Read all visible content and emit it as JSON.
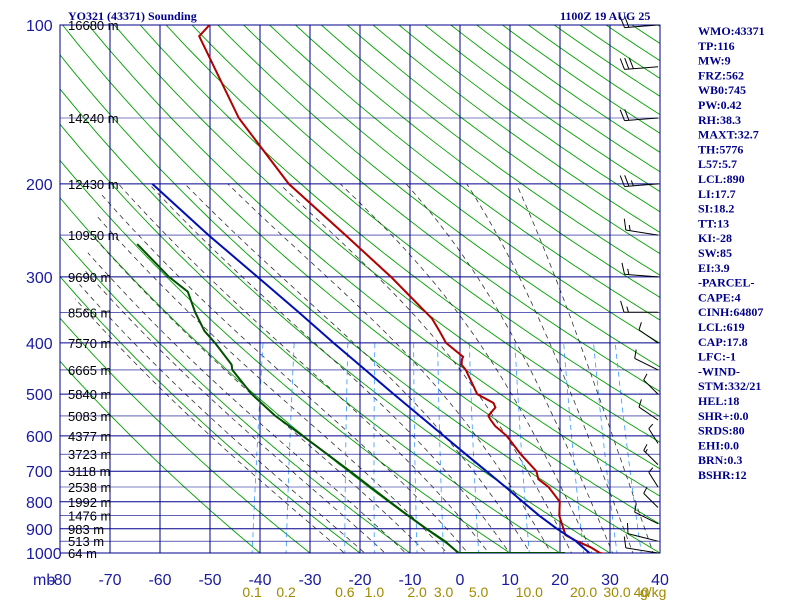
{
  "header": {
    "title": "YO321 (43371) Sounding",
    "datetime": "1100Z 19 AUG 25"
  },
  "chart_data": {
    "type": "line",
    "title": "YO321 (43371) Sounding",
    "pressure_levels": [
      100,
      200,
      300,
      400,
      500,
      600,
      700,
      800,
      900,
      1000
    ],
    "pressure_axis_label": "mb",
    "temperature_ticks": [
      -80,
      -70,
      -60,
      -50,
      -40,
      -30,
      -20,
      -10,
      0,
      10,
      20,
      30,
      40
    ],
    "temperature_range": [
      -80,
      40
    ],
    "mixing_ratio_ticks": [
      "0.1",
      "0.2",
      "0.6",
      "1.0",
      "2.0",
      "3.0",
      "5.0",
      "10.0",
      "20.0",
      "30.0",
      "40"
    ],
    "mixing_ratio_unit": "g/kg",
    "height_labels": [
      {
        "p": 100,
        "text": "16680 m"
      },
      {
        "p": 150,
        "text": "14240 m"
      },
      {
        "p": 200,
        "text": "12430 m"
      },
      {
        "p": 250,
        "text": "10950 m"
      },
      {
        "p": 300,
        "text": "9690 m"
      },
      {
        "p": 350,
        "text": "8566 m"
      },
      {
        "p": 400,
        "text": "7570 m"
      },
      {
        "p": 450,
        "text": "6665 m"
      },
      {
        "p": 500,
        "text": "5840 m"
      },
      {
        "p": 550,
        "text": "5083 m"
      },
      {
        "p": 600,
        "text": "4377 m"
      },
      {
        "p": 650,
        "text": "3723 m"
      },
      {
        "p": 700,
        "text": "3118 m"
      },
      {
        "p": 750,
        "text": "2538 m"
      },
      {
        "p": 800,
        "text": "1992 m"
      },
      {
        "p": 850,
        "text": "1476 m"
      },
      {
        "p": 900,
        "text": "983 m"
      },
      {
        "p": 950,
        "text": "513 m"
      },
      {
        "p": 1000,
        "text": "64 m"
      }
    ],
    "series": [
      {
        "values": [
          [
            1005,
            29.5
          ],
          [
            1000,
            28.0
          ],
          [
            975,
            25.8
          ],
          [
            950,
            22.8
          ],
          [
            925,
            20.2
          ],
          [
            900,
            19.5
          ],
          [
            850,
            18.0
          ],
          [
            800,
            17.4
          ],
          [
            750,
            14.4
          ],
          [
            725,
            12.0
          ],
          [
            700,
            11.2
          ],
          [
            650,
            7.2
          ],
          [
            600,
            3.5
          ],
          [
            575,
            0.7
          ],
          [
            560,
            -0.5
          ],
          [
            550,
            -1.2
          ],
          [
            530,
            -0.2
          ],
          [
            520,
            -0.8
          ],
          [
            500,
            -4.5
          ],
          [
            450,
            -8.0
          ],
          [
            440,
            -9.1
          ],
          [
            430,
            -9.3
          ],
          [
            425,
            -9.2
          ],
          [
            400,
            -13.3
          ],
          [
            380,
            -15.2
          ],
          [
            360,
            -17.3
          ],
          [
            300,
            -27.6
          ],
          [
            250,
            -38.8
          ],
          [
            200,
            -52.7
          ],
          [
            150,
            -66.0
          ],
          [
            105,
            -78.0
          ],
          [
            100,
            -76.5
          ]
        ]
      },
      {
        "values": [
          [
            1005,
            26.5
          ],
          [
            1000,
            25.9
          ],
          [
            950,
            22.6
          ],
          [
            900,
            18.2
          ],
          [
            850,
            14.0
          ],
          [
            800,
            10.0
          ],
          [
            750,
            5.8
          ],
          [
            700,
            1.2
          ],
          [
            650,
            -3.8
          ],
          [
            600,
            -9.1
          ],
          [
            550,
            -14.9
          ],
          [
            500,
            -21.2
          ],
          [
            450,
            -28.1
          ],
          [
            400,
            -35.8
          ],
          [
            350,
            -44.3
          ],
          [
            300,
            -54.3
          ],
          [
            250,
            -66.2
          ],
          [
            200,
            -80.0
          ]
        ]
      },
      {
        "values": [
          [
            1002,
            21.0
          ],
          [
            1000,
            20.9
          ],
          [
            1000,
            -0.3
          ],
          [
            950,
            -3.6
          ],
          [
            900,
            -7.9
          ],
          [
            850,
            -12.2
          ],
          [
            800,
            -16.6
          ],
          [
            750,
            -21.2
          ],
          [
            700,
            -26.1
          ],
          [
            650,
            -31.5
          ],
          [
            600,
            -37.3
          ],
          [
            550,
            -43.8
          ],
          [
            500,
            -49.6
          ],
          [
            450,
            -54.7
          ],
          [
            440,
            -55.1
          ],
          [
            400,
            -59.5
          ],
          [
            380,
            -62.2
          ],
          [
            350,
            -65.0
          ],
          [
            320,
            -67.5
          ],
          [
            300,
            -72.0
          ],
          [
            260,
            -80.0
          ]
        ]
      }
    ],
    "wind_barbs": [
      {
        "p": 100,
        "dir": 100,
        "spd": 20
      },
      {
        "p": 120,
        "dir": 100,
        "spd": 30
      },
      {
        "p": 150,
        "dir": 100,
        "spd": 20
      },
      {
        "p": 200,
        "dir": 100,
        "spd": 25
      },
      {
        "p": 250,
        "dir": 70,
        "spd": 15
      },
      {
        "p": 300,
        "dir": 80,
        "spd": 15
      },
      {
        "p": 350,
        "dir": 90,
        "spd": 15
      },
      {
        "p": 400,
        "dir": 30,
        "spd": 10
      },
      {
        "p": 450,
        "dir": 40,
        "spd": 10
      },
      {
        "p": 500,
        "dir": 340,
        "spd": 10
      },
      {
        "p": 560,
        "dir": 330,
        "spd": 10
      },
      {
        "p": 620,
        "dir": 350,
        "spd": 10
      },
      {
        "p": 680,
        "dir": 20,
        "spd": 15
      },
      {
        "p": 750,
        "dir": 10,
        "spd": 10
      },
      {
        "p": 820,
        "dir": 340,
        "spd": 10
      },
      {
        "p": 880,
        "dir": 320,
        "spd": 10
      },
      {
        "p": 950,
        "dir": 300,
        "spd": 10
      },
      {
        "p": 1000,
        "dir": 290,
        "spd": 10
      }
    ]
  },
  "indices": [
    "WMO:43371",
    "TP:116",
    "MW:9",
    "FRZ:562",
    "WB0:745",
    "PW:0.42",
    "RH:38.3",
    "MAXT:32.7",
    "TH:5776",
    "L57:5.7",
    "LCL:890",
    "LI:17.7",
    "SI:18.2",
    "TT:13",
    "KI:-28",
    "SW:85",
    "EI:3.9",
    "-PARCEL-",
    "CAPE:4",
    "CINH:64807",
    "LCL:619",
    "CAP:17.8",
    "LFC:-1",
    "-WIND-",
    "STM:332/21",
    "HEL:18",
    "SHR+:0.0",
    "SRDS:80",
    "EHI:0.0",
    "BRN:0.3",
    "BSHR:12"
  ],
  "colors": {
    "grid": "#00008b",
    "dry_adiabat": "#00a000",
    "moist_adiabat": "#333333",
    "mixing_ratio": "#3399ff",
    "temperature": "#b00000",
    "parcel": "#0010b0",
    "dewpoint": "#005000",
    "pressure_tick": "#1a1aa0",
    "mixing_tick": "#a08a00"
  }
}
